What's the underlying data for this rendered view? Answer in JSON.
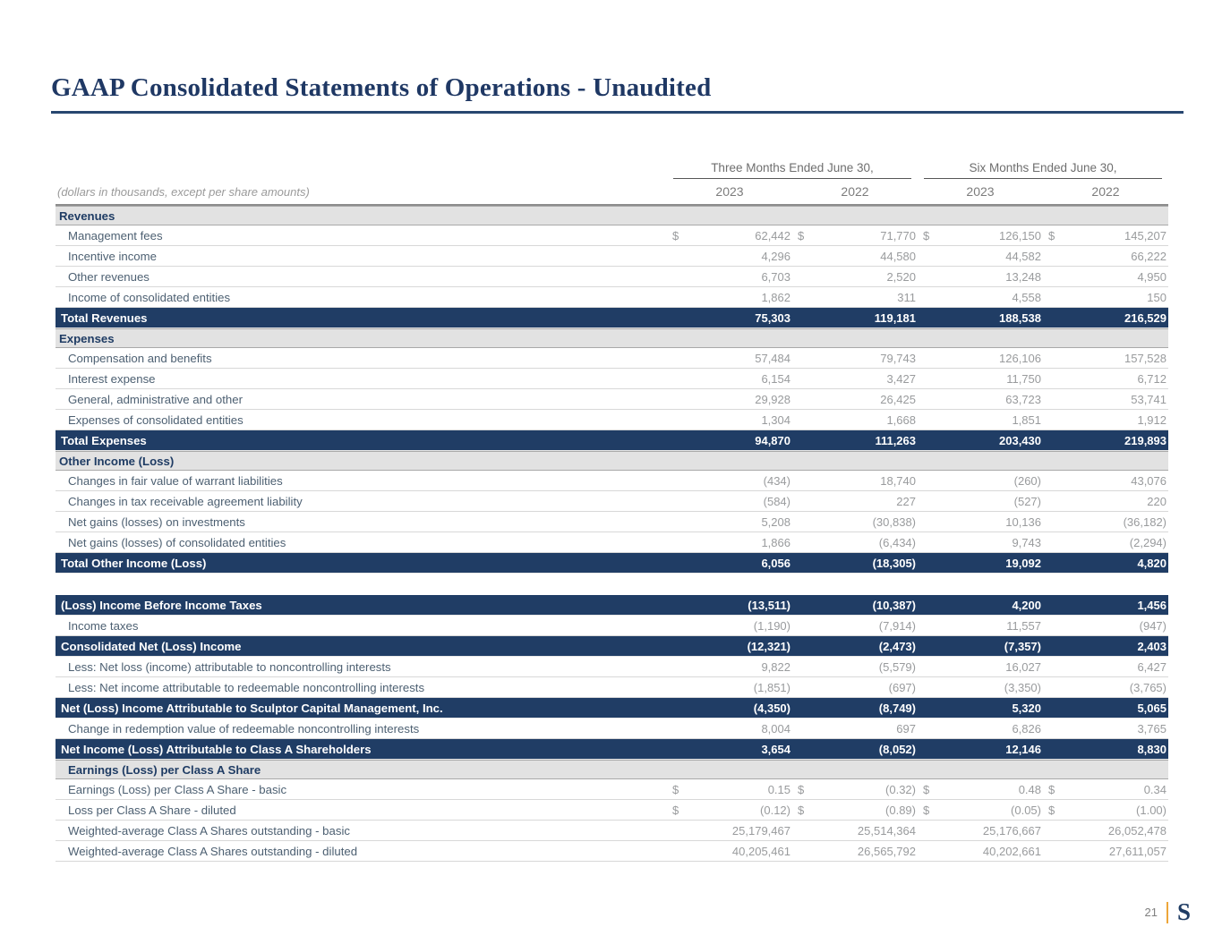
{
  "page": {
    "title": "GAAP Consolidated Statements of Operations - Unaudited",
    "footer": {
      "page_number": "21",
      "logo": "S"
    }
  },
  "colors": {
    "navy": "#1f3c64",
    "total_row_bg": "#203d65",
    "section_bg": "#e2e2e2",
    "label_text": "#4d6072",
    "value_text": "#999b9d",
    "accent_gold": "#eda63a"
  },
  "table": {
    "note": "(dollars in thousands, except per share amounts)",
    "column_groups": [
      {
        "label": "Three Months Ended June 30,",
        "years": [
          "2023",
          "2022"
        ]
      },
      {
        "label": "Six Months Ended June 30,",
        "years": [
          "2023",
          "2022"
        ]
      }
    ],
    "rows": [
      {
        "type": "section",
        "label": "Revenues"
      },
      {
        "type": "data",
        "label": "Management fees",
        "dollar": true,
        "values": [
          "62,442",
          "71,770",
          "126,150",
          "145,207"
        ]
      },
      {
        "type": "data",
        "label": "Incentive income",
        "values": [
          "4,296",
          "44,580",
          "44,582",
          "66,222"
        ]
      },
      {
        "type": "data",
        "label": "Other revenues",
        "values": [
          "6,703",
          "2,520",
          "13,248",
          "4,950"
        ]
      },
      {
        "type": "data",
        "label": "Income of consolidated entities",
        "values": [
          "1,862",
          "311",
          "4,558",
          "150"
        ]
      },
      {
        "type": "total",
        "label": "Total Revenues",
        "values": [
          "75,303",
          "119,181",
          "188,538",
          "216,529"
        ]
      },
      {
        "type": "section",
        "label": "Expenses"
      },
      {
        "type": "data",
        "label": "Compensation and benefits",
        "values": [
          "57,484",
          "79,743",
          "126,106",
          "157,528"
        ]
      },
      {
        "type": "data",
        "label": "Interest expense",
        "values": [
          "6,154",
          "3,427",
          "11,750",
          "6,712"
        ]
      },
      {
        "type": "data",
        "label": "General, administrative and other",
        "values": [
          "29,928",
          "26,425",
          "63,723",
          "53,741"
        ]
      },
      {
        "type": "data",
        "label": "Expenses of consolidated entities",
        "values": [
          "1,304",
          "1,668",
          "1,851",
          "1,912"
        ]
      },
      {
        "type": "total",
        "label": "Total Expenses",
        "values": [
          "94,870",
          "111,263",
          "203,430",
          "219,893"
        ]
      },
      {
        "type": "section",
        "label": "Other Income (Loss)"
      },
      {
        "type": "data",
        "label": "Changes in fair value of warrant liabilities",
        "values": [
          "(434)",
          "18,740",
          "(260)",
          "43,076"
        ]
      },
      {
        "type": "data",
        "label": "Changes in tax receivable agreement liability",
        "values": [
          "(584)",
          "227",
          "(527)",
          "220"
        ]
      },
      {
        "type": "data",
        "label": "Net gains (losses) on investments",
        "values": [
          "5,208",
          "(30,838)",
          "10,136",
          "(36,182)"
        ]
      },
      {
        "type": "data",
        "label": "Net gains (losses) of consolidated entities",
        "values": [
          "1,866",
          "(6,434)",
          "9,743",
          "(2,294)"
        ]
      },
      {
        "type": "total",
        "label": "Total Other Income (Loss)",
        "values": [
          "6,056",
          "(18,305)",
          "19,092",
          "4,820"
        ]
      },
      {
        "type": "gap"
      },
      {
        "type": "total",
        "label": "(Loss) Income Before Income Taxes",
        "values": [
          "(13,511)",
          "(10,387)",
          "4,200",
          "1,456"
        ]
      },
      {
        "type": "data",
        "label": "Income taxes",
        "values": [
          "(1,190)",
          "(7,914)",
          "11,557",
          "(947)"
        ]
      },
      {
        "type": "total",
        "label": "Consolidated Net (Loss) Income",
        "values": [
          "(12,321)",
          "(2,473)",
          "(7,357)",
          "2,403"
        ]
      },
      {
        "type": "data",
        "label": "Less: Net loss (income) attributable to noncontrolling interests",
        "values": [
          "9,822",
          "(5,579)",
          "16,027",
          "6,427"
        ]
      },
      {
        "type": "data",
        "label": "Less: Net income attributable to redeemable noncontrolling interests",
        "values": [
          "(1,851)",
          "(697)",
          "(3,350)",
          "(3,765)"
        ]
      },
      {
        "type": "total",
        "label": "Net (Loss) Income Attributable to Sculptor Capital Management, Inc.",
        "values": [
          "(4,350)",
          "(8,749)",
          "5,320",
          "5,065"
        ]
      },
      {
        "type": "data",
        "label": "Change in redemption value of redeemable noncontrolling interests",
        "values": [
          "8,004",
          "697",
          "6,826",
          "3,765"
        ]
      },
      {
        "type": "total",
        "label": "Net Income (Loss) Attributable to Class A Shareholders",
        "values": [
          "3,654",
          "(8,052)",
          "12,146",
          "8,830"
        ]
      },
      {
        "type": "section_indent",
        "label": "Earnings (Loss) per Class A Share"
      },
      {
        "type": "data",
        "label": "Earnings (Loss) per Class A Share - basic",
        "dollar": true,
        "values": [
          "0.15",
          "(0.32)",
          "0.48",
          "0.34"
        ]
      },
      {
        "type": "data",
        "label": "Loss per Class A Share - diluted",
        "dollar": true,
        "values": [
          "(0.12)",
          "(0.89)",
          "(0.05)",
          "(1.00)"
        ]
      },
      {
        "type": "data",
        "label": "Weighted-average Class A Shares outstanding - basic",
        "values": [
          "25,179,467",
          "25,514,364",
          "25,176,667",
          "26,052,478"
        ]
      },
      {
        "type": "data",
        "label": "Weighted-average Class A Shares outstanding - diluted",
        "values": [
          "40,205,461",
          "26,565,792",
          "40,202,661",
          "27,611,057"
        ]
      }
    ]
  }
}
